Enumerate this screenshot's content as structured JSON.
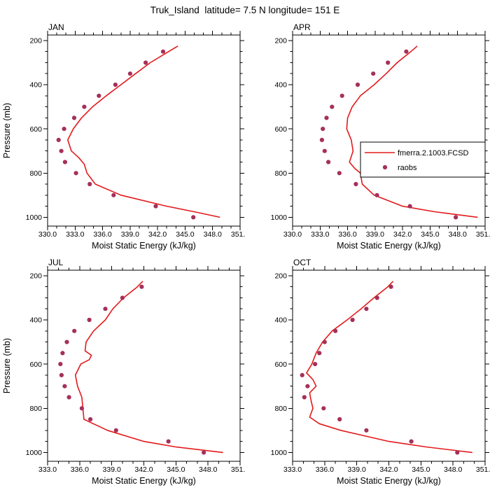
{
  "title": "Truk_Island  latitude= 7.5 N longitude= 151 E",
  "colors": {
    "model_line": "#e31a1c",
    "raobs_dot": "#a5305a",
    "axis": "#000000",
    "background": "#ffffff"
  },
  "chart_data": [
    {
      "type": "line",
      "title": "JAN",
      "xlabel": "Moist Static Energy (kJ/kg)",
      "ylabel": "Pressure (mb)",
      "xlim": [
        330.0,
        351.0
      ],
      "ylim": [
        1040,
        175
      ],
      "xticks": [
        330.0,
        333.0,
        336.0,
        339.0,
        342.0,
        345.0,
        348.0,
        351.0
      ],
      "yticks": [
        200,
        400,
        600,
        800,
        1000
      ],
      "x_minor_step": 1,
      "y_minor_step": 50,
      "series": [
        {
          "name": "fmerra.2.1003.FCSD",
          "type": "line",
          "pressure": [
            225,
            250,
            300,
            350,
            400,
            450,
            500,
            550,
            600,
            650,
            700,
            730,
            760,
            800,
            850,
            900,
            950,
            975,
            1000
          ],
          "values": [
            344.2,
            343.2,
            341.2,
            339.6,
            338.0,
            336.4,
            334.9,
            333.7,
            332.8,
            332.2,
            332.6,
            333.4,
            334.0,
            334.3,
            335.2,
            338.0,
            343.0,
            346.0,
            348.8
          ]
        },
        {
          "name": "raobs",
          "type": "scatter",
          "pressure": [
            250,
            300,
            350,
            400,
            450,
            500,
            550,
            600,
            650,
            700,
            750,
            800,
            850,
            900,
            950,
            1000
          ],
          "values": [
            342.6,
            340.7,
            339.0,
            337.4,
            335.6,
            334.0,
            332.9,
            331.8,
            331.2,
            331.5,
            331.9,
            333.1,
            334.6,
            337.2,
            341.8,
            345.9
          ]
        }
      ]
    },
    {
      "type": "line",
      "title": "APR",
      "xlabel": "Moist Static Energy (kJ/kg)",
      "ylabel": "",
      "xlim": [
        330.0,
        351.0
      ],
      "ylim": [
        1040,
        175
      ],
      "xticks": [
        330.0,
        333.0,
        336.0,
        339.0,
        342.0,
        345.0,
        348.0,
        351.0
      ],
      "yticks": [
        200,
        400,
        600,
        800,
        1000
      ],
      "x_minor_step": 1,
      "y_minor_step": 50,
      "legend": {
        "entries": [
          {
            "type": "line",
            "label": "fmerra.2.1003.FCSD"
          },
          {
            "type": "marker",
            "label": "raobs"
          }
        ]
      },
      "series": [
        {
          "name": "fmerra.2.1003.FCSD",
          "type": "line",
          "pressure": [
            225,
            250,
            300,
            350,
            400,
            450,
            500,
            550,
            600,
            650,
            700,
            750,
            780,
            800,
            850,
            900,
            950,
            975,
            1000
          ],
          "values": [
            343.6,
            342.9,
            341.4,
            340.2,
            338.9,
            337.4,
            336.5,
            336.0,
            335.9,
            336.4,
            336.6,
            336.2,
            336.8,
            337.4,
            337.6,
            338.9,
            342.0,
            345.5,
            350.2
          ]
        },
        {
          "name": "raobs",
          "type": "scatter",
          "pressure": [
            250,
            300,
            350,
            400,
            450,
            500,
            550,
            600,
            650,
            700,
            750,
            800,
            850,
            900,
            950,
            1000
          ],
          "values": [
            342.4,
            340.4,
            338.8,
            337.1,
            335.4,
            334.3,
            333.7,
            333.3,
            333.2,
            333.5,
            333.9,
            335.1,
            336.9,
            339.2,
            342.8,
            347.8
          ]
        }
      ]
    },
    {
      "type": "line",
      "title": "JUL",
      "xlabel": "Moist Static Energy (kJ/kg)",
      "ylabel": "Pressure (mb)",
      "xlim": [
        333.0,
        351.0
      ],
      "ylim": [
        1040,
        175
      ],
      "xticks": [
        333.0,
        336.0,
        339.0,
        342.0,
        345.0,
        348.0,
        351.0
      ],
      "yticks": [
        200,
        400,
        600,
        800,
        1000
      ],
      "x_minor_step": 1,
      "y_minor_step": 50,
      "series": [
        {
          "name": "fmerra.2.1003.FCSD",
          "type": "line",
          "pressure": [
            225,
            250,
            300,
            350,
            400,
            450,
            500,
            540,
            560,
            580,
            600,
            650,
            700,
            750,
            800,
            850,
            900,
            950,
            975,
            1000
          ],
          "values": [
            341.9,
            341.4,
            340.1,
            339.1,
            338.4,
            337.3,
            336.6,
            336.5,
            337.1,
            336.9,
            336.1,
            335.6,
            335.8,
            336.2,
            336.3,
            336.4,
            338.6,
            342.0,
            345.0,
            349.4
          ]
        },
        {
          "name": "raobs",
          "type": "scatter",
          "pressure": [
            250,
            300,
            350,
            400,
            450,
            500,
            550,
            600,
            650,
            700,
            750,
            800,
            850,
            900,
            950,
            1000
          ],
          "values": [
            341.8,
            340.0,
            338.4,
            336.9,
            335.5,
            334.8,
            334.4,
            334.2,
            334.3,
            334.6,
            335.0,
            336.2,
            337.0,
            339.4,
            344.3,
            347.6
          ]
        }
      ]
    },
    {
      "type": "line",
      "title": "OCT",
      "xlabel": "Moist Static Energy (kJ/kg)",
      "ylabel": "",
      "xlim": [
        333.0,
        351.0
      ],
      "ylim": [
        1040,
        175
      ],
      "xticks": [
        333.0,
        336.0,
        339.0,
        342.0,
        345.0,
        348.0,
        351.0
      ],
      "yticks": [
        200,
        400,
        600,
        800,
        1000
      ],
      "x_minor_step": 1,
      "y_minor_step": 50,
      "series": [
        {
          "name": "fmerra.2.1003.FCSD",
          "type": "line",
          "pressure": [
            225,
            250,
            300,
            350,
            400,
            450,
            500,
            550,
            600,
            640,
            670,
            700,
            730,
            760,
            800,
            840,
            870,
            900,
            950,
            975,
            1000
          ],
          "values": [
            342.4,
            341.9,
            340.6,
            339.4,
            338.1,
            336.7,
            335.8,
            335.2,
            334.8,
            334.3,
            334.9,
            335.2,
            334.6,
            334.7,
            334.9,
            334.6,
            335.5,
            337.5,
            342.0,
            345.5,
            349.8
          ]
        },
        {
          "name": "raobs",
          "type": "scatter",
          "pressure": [
            250,
            300,
            350,
            400,
            450,
            500,
            550,
            600,
            650,
            700,
            750,
            800,
            850,
            900,
            950,
            1000
          ],
          "values": [
            342.2,
            340.9,
            339.9,
            338.6,
            337.0,
            336.0,
            335.5,
            335.1,
            333.9,
            334.4,
            334.1,
            335.9,
            337.4,
            339.9,
            344.1,
            348.4
          ]
        }
      ]
    }
  ]
}
